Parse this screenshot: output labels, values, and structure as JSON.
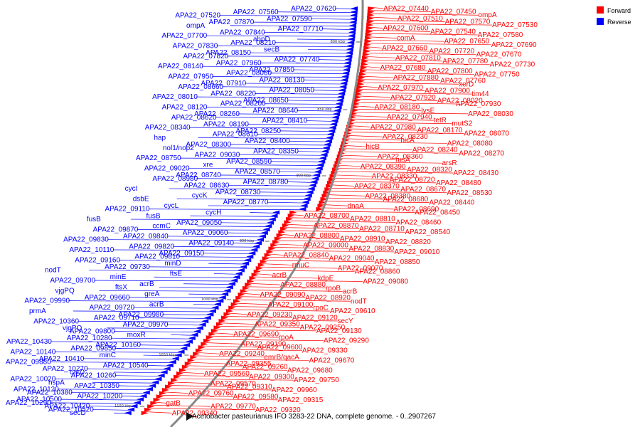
{
  "colors": {
    "forward": "#ff0000",
    "reverse": "#0000ff",
    "backbone": "#888888"
  },
  "legend": {
    "forward": "Forward",
    "reverse": "Reverse"
  },
  "caption": "Acetobacter pasteurianus IFO 3283-22 DNA, complete genome. - 0..2907267",
  "scale_labels": [
    "800 kbp",
    "850 kbp",
    "900 kbp",
    "950 kbp",
    "1000 kbp",
    "1050 kbp",
    "1100 kbp"
  ],
  "forward_labels": [
    "APA22_07440",
    "APA22_07450",
    "ompA",
    "APA22_07510",
    "APA22_07570",
    "APA22_07530",
    "APA22_07600",
    "APA22_07540",
    "APA22_07580",
    "comA",
    "APA22_07650",
    "APA22_07690",
    "APA22_07660",
    "APA22_07720",
    "APA22_07670",
    "APA22_07810",
    "APA22_07780",
    "APA22_07730",
    "APA22_07680",
    "APA22_07800",
    "APA22_07750",
    "APA22_07880",
    "APA22_07760",
    "xerD",
    "APA22_07970",
    "APA22_07900",
    "tim44",
    "APA22_07920",
    "APA22_08020",
    "APA22_07930",
    "APA22_08180",
    "lysE",
    "APA22_08030",
    "APA22_07940",
    "tetR",
    "mutS2",
    "APA22_07980",
    "APA22_08170",
    "APA22_08070",
    "APA22_08230",
    "hicA",
    "APA22_08080",
    "hicB",
    "APA22_08240",
    "APA22_08270",
    "APA22_08360",
    "rusA",
    "arsR",
    "APA22_08390",
    "APA22_08320",
    "APA22_08430",
    "APA22_08330",
    "APA22_08720",
    "APA22_08480",
    "APA22_08370",
    "APA22_08670",
    "APA22_08530",
    "APA22_08380",
    "APA22_08680",
    "APA22_08440",
    "dnaA",
    "APA22_08690",
    "APA22_08450",
    "APA22_08700",
    "APA22_08810",
    "APA22_08460",
    "APA22_08870",
    "APA22_08710",
    "APA22_08540",
    "APA22_08800",
    "APA22_08910",
    "APA22_08820",
    "APA22_09000",
    "APA22_08830",
    "APA22_09010",
    "APA22_08840",
    "APA22_09040",
    "APA22_08850",
    "rmuC",
    "APA22_09070",
    "APA22_08860",
    "acrB",
    "kdpE",
    "APA22_09080",
    "APA22_08880",
    "rpoB",
    "acrB",
    "APA22_09090",
    "APA22_08920",
    "nodT",
    "APA22_09100",
    "rpoC",
    "APA22_09610",
    "APA22_09230",
    "APA22_09120",
    "secY",
    "APA22_09350",
    "APA22_09250",
    "APA22_09130",
    "APA22_09690",
    "rpoA",
    "APA22_09290",
    "APA22_09190",
    "APA22_09600",
    "APA22_09330",
    "APA22_09240",
    "emrB/qacA",
    "APA22_09670",
    "APA22_09355",
    "APA22_09260",
    "APA22_09680",
    "APA22_09560",
    "APA22_09300",
    "APA22_09750",
    "APA22_09570",
    "APA22_09310",
    "APA22_09960",
    "APA22_09760",
    "APA22_09580",
    "APA22_09315",
    "gatB",
    "APA22_09770",
    "APA22_09320",
    "APA22_09340"
  ],
  "reverse_labels": [
    "APA22_07620",
    "APA22_07560",
    "APA22_07520",
    "APA22_07590",
    "APA22_07870",
    "ompA",
    "APA22_07710",
    "APA22_07840",
    "APA22_07700",
    "ahpD",
    "APA22_08210",
    "APA22_07830",
    "secB",
    "APA22_08150",
    "APA22_07820",
    "APA22_07740",
    "APA22_07960",
    "APA22_08140",
    "APA22_07850",
    "APA22_08060",
    "APA22_07950",
    "APA22_08130",
    "APA22_07910",
    "APA22_08660",
    "APA22_08050",
    "APA22_08220",
    "APA22_08010",
    "APA22_08650",
    "APA22_08200",
    "APA22_08120",
    "APA22_08640",
    "APA22_08260",
    "APA22_08620",
    "APA22_08410",
    "APA22_08190",
    "APA22_08340",
    "APA22_08250",
    "APA22_08610",
    "hap",
    "APA22_08400",
    "APA22_08300",
    "nol1/nop2",
    "APA22_08350",
    "APA22_09030",
    "APA22_08750",
    "APA22_08590",
    "xre",
    "APA22_09020",
    "APA22_08570",
    "APA22_08740",
    "APA22_08980",
    "APA22_08780",
    "APA22_08630",
    "cycI",
    "APA22_08730",
    "cycK",
    "dsbE",
    "APA22_08770",
    "cycL",
    "APA22_09110",
    "cycH",
    "fusB",
    "fusB",
    "APA22_09050",
    "ccmC",
    "APA22_09870",
    "APA22_09060",
    "APA22_09840",
    "APA22_09830",
    "APA22_09140",
    "APA22_09820",
    "APA22_10110",
    "APA22_09150",
    "APA22_09810",
    "APA22_09160",
    "minD",
    "APA22_09730",
    "nodT",
    "ftsE",
    "minE",
    "APA22_09700",
    "acrB",
    "ftsX",
    "vjgPQ",
    "greA",
    "APA22_09660",
    "APA22_09990",
    "acrB",
    "APA22_09720",
    "prmA",
    "APA22_09980",
    "APA22_09710",
    "APA22_10360",
    "APA22_09970",
    "vjgPQ",
    "APA22_09800",
    "moxR",
    "APA22_10280",
    "APA22_10430",
    "APA22_10160",
    "APA22_09850",
    "APA22_10140",
    "minC",
    "APA22_10410",
    "APA22_09880",
    "APA22_10540",
    "APA22_10270",
    "carD",
    "APA22_10260",
    "APA22_10020",
    "hspA",
    "APA22_10350",
    "APA22_10120",
    "APA22_10380",
    "APA22_10200",
    "APA22_10500",
    "APA22_10290",
    "APA22_10420",
    "APA22_10520",
    "secD"
  ]
}
